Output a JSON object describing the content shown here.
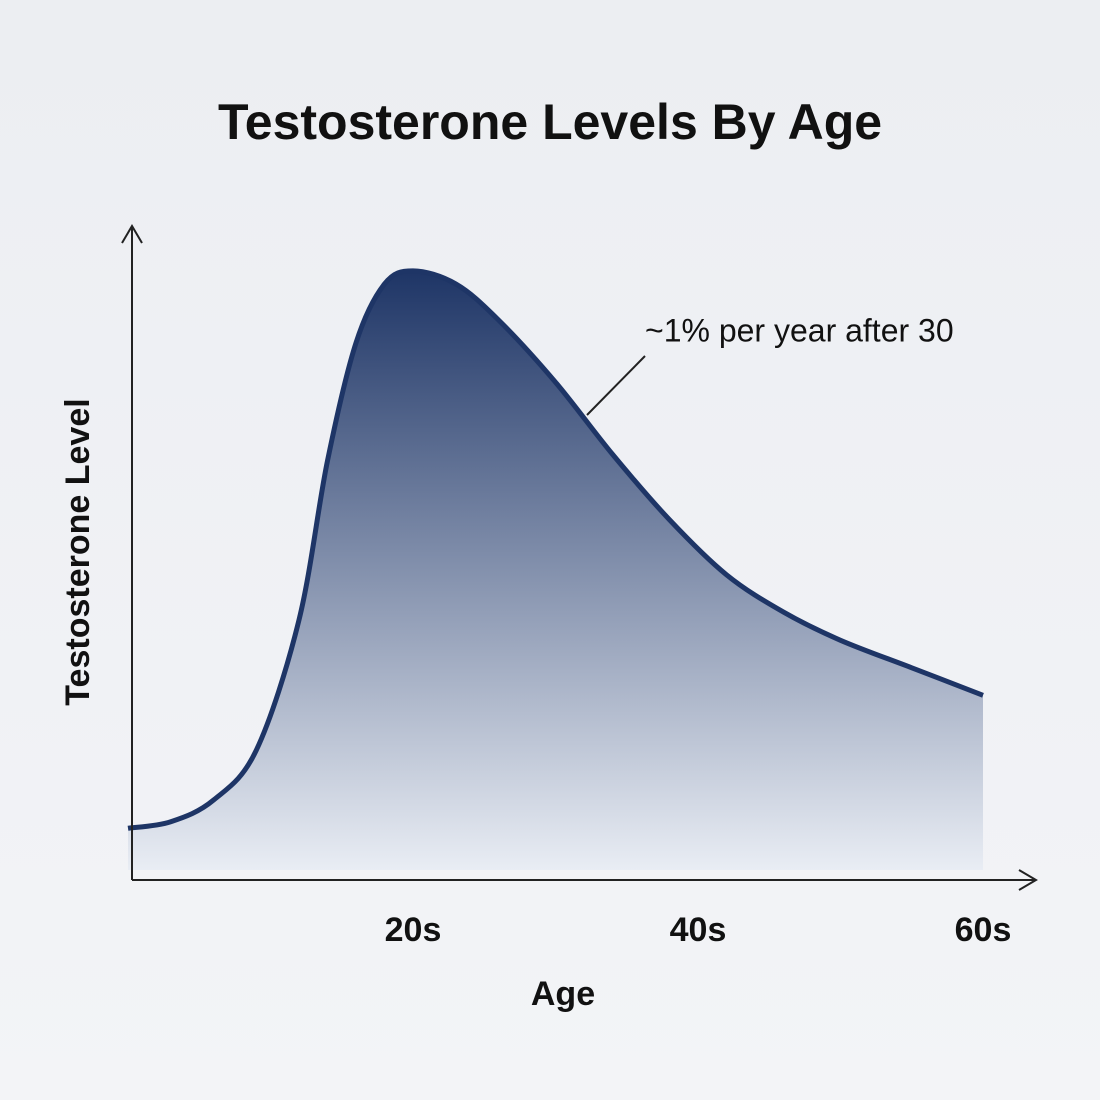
{
  "chart_data": {
    "type": "area",
    "title": "Testosterone Levels By Age",
    "x_label": "Age",
    "y_label": "Testosterone Level",
    "annotation": "~1% per year after 30",
    "x": [
      0,
      3,
      6,
      9,
      12,
      14,
      16,
      18,
      20,
      23,
      26,
      30,
      34,
      38,
      42,
      46,
      50,
      55,
      60
    ],
    "values": [
      7.9,
      8.9,
      12.2,
      19.8,
      39.7,
      64,
      82,
      91,
      93,
      91,
      85.5,
      76,
      65,
      55,
      46.6,
      40.9,
      36.6,
      32.4,
      28.2
    ],
    "color": "#1e3566",
    "xlim": [
      0,
      64
    ],
    "xticks": [
      {
        "value": 20,
        "label": "20s"
      },
      {
        "value": 40,
        "label": "40s"
      },
      {
        "value": 60,
        "label": "60s"
      }
    ],
    "ylim": [
      0,
      100
    ]
  }
}
